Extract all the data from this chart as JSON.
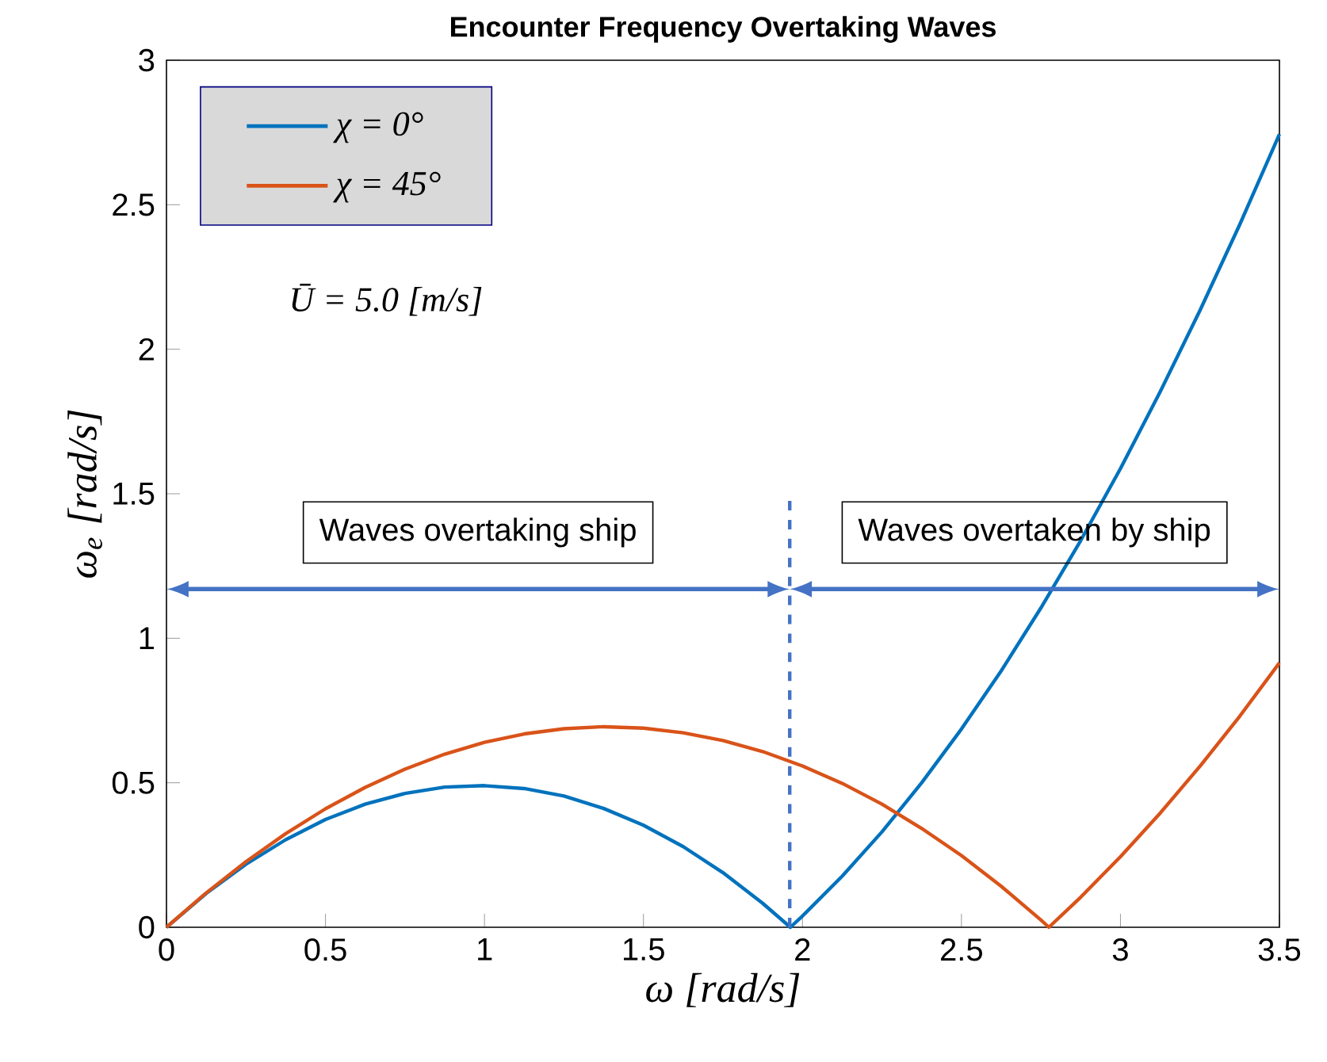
{
  "chart_data": {
    "type": "line",
    "title": "Encounter Frequency Overtaking Waves",
    "xlabel": "ω [rad/s]",
    "ylabel": "ω$_{e}$ [rad/s]",
    "xlim": [
      0,
      3.5
    ],
    "ylim": [
      0,
      3
    ],
    "xticks": [
      0,
      0.5,
      1,
      1.5,
      2,
      2.5,
      3,
      3.5
    ],
    "yticks": [
      0,
      0.5,
      1,
      1.5,
      2,
      2.5,
      3
    ],
    "grid": false,
    "legend": "top left",
    "line_style": "solid",
    "marker": "none",
    "series": [
      {
        "name": "χ = 0°",
        "color": "#0072bd",
        "x": [
          0,
          0.125,
          0.25,
          0.375,
          0.5,
          0.625,
          0.75,
          0.875,
          1.0,
          1.125,
          1.25,
          1.375,
          1.5,
          1.625,
          1.75,
          1.875,
          1.962,
          2.0,
          2.125,
          2.25,
          2.375,
          2.5,
          2.625,
          2.75,
          2.875,
          3.0,
          3.125,
          3.25,
          3.375,
          3.5
        ],
        "values": [
          0,
          0.117,
          0.218,
          0.303,
          0.373,
          0.426,
          0.463,
          0.485,
          0.49,
          0.48,
          0.454,
          0.411,
          0.353,
          0.279,
          0.189,
          0.083,
          0,
          0.039,
          0.177,
          0.33,
          0.5,
          0.686,
          0.887,
          1.105,
          1.338,
          1.587,
          1.853,
          2.134,
          2.431,
          2.744
        ]
      },
      {
        "name": "χ = 45°",
        "color": "#d95319",
        "x": [
          0,
          0.125,
          0.25,
          0.375,
          0.5,
          0.625,
          0.75,
          0.875,
          1.0,
          1.125,
          1.25,
          1.375,
          1.5,
          1.625,
          1.75,
          1.875,
          2.0,
          2.125,
          2.25,
          2.375,
          2.5,
          2.625,
          2.75,
          2.775,
          2.875,
          3.0,
          3.125,
          3.25,
          3.375,
          3.5
        ],
        "values": [
          0,
          0.119,
          0.227,
          0.324,
          0.41,
          0.484,
          0.547,
          0.599,
          0.64,
          0.669,
          0.687,
          0.694,
          0.689,
          0.673,
          0.646,
          0.608,
          0.558,
          0.498,
          0.426,
          0.342,
          0.248,
          0.142,
          0.025,
          0,
          0.104,
          0.244,
          0.395,
          0.557,
          0.73,
          0.915
        ]
      }
    ],
    "ref_lines": [
      {
        "axis": "x",
        "value": 1.96,
        "color": "#4472c4",
        "line_style": "dashed"
      }
    ],
    "annotations": [
      "Waves overtaking ship",
      "Waves overtaken by ship",
      "Ū = 5.0 [m/s]"
    ]
  }
}
